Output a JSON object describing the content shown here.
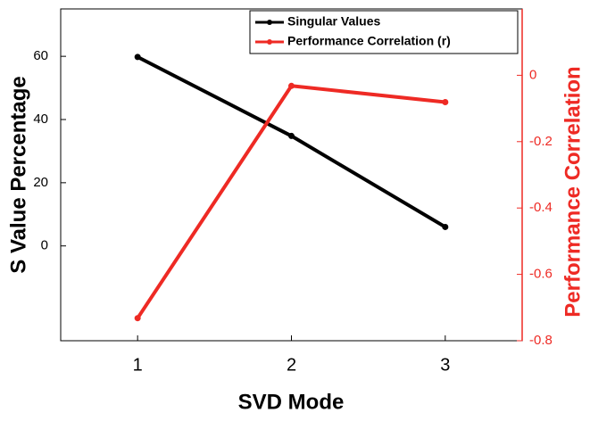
{
  "chart_data": {
    "type": "line",
    "x_label": "SVD Mode",
    "y_label": "S Value Percentage",
    "y2_label": "Performance Correlation",
    "x": [
      1,
      2,
      3
    ],
    "xlim": [
      0.5,
      3.5
    ],
    "xticks": [
      1,
      2,
      3
    ],
    "ylim": [
      -30,
      75
    ],
    "yticks": [
      0,
      20,
      40,
      60
    ],
    "y2lim": [
      -0.8,
      0.2
    ],
    "y2ticks": [
      0,
      -0.2,
      -0.4,
      -0.6,
      -0.8
    ],
    "legend": "upper right",
    "series": [
      {
        "name": "Singular Values",
        "color": "#000000",
        "values": [
          59.8,
          34.8,
          6
        ]
      },
      {
        "name": "Performance Correlation (r)",
        "color": "#ee2a24",
        "axis": "y2",
        "values": [
          -0.732,
          -0.032,
          -0.081
        ]
      }
    ]
  }
}
